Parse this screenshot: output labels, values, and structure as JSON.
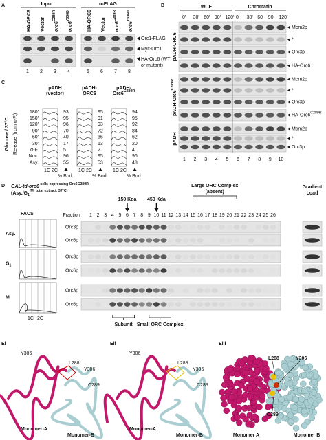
{
  "panel_a": {
    "label": "A",
    "headers": [
      "Input",
      "α-FLAG"
    ],
    "columns": [
      [
        "HA-ORC6"
      ],
      [
        "Vector"
      ],
      [
        "orc6",
        "C289R"
      ],
      [
        "orc6",
        "Y306D"
      ],
      [
        "HA-ORC6"
      ],
      [
        "Vector"
      ],
      [
        "orc6",
        "C289R"
      ],
      [
        "orc6",
        "Y306D"
      ]
    ],
    "rows": [
      [
        "Orc1-FLAG"
      ],
      [
        "Myc-Orc1"
      ],
      [
        "HA-Orc6 (WT",
        "or mutant)"
      ]
    ],
    "lane_numbers": [
      1,
      2,
      3,
      4,
      5,
      6,
      7,
      8
    ]
  },
  "panel_b": {
    "label": "B",
    "headers": [
      "WCE",
      "Chromatin"
    ],
    "times": [
      "0'",
      "30'",
      "60'",
      "90'",
      "120'"
    ],
    "groups": [
      {
        "name": [
          "pADH-ORC6"
        ],
        "bands": [
          [
            "Mcm2p"
          ],
          [
            "*"
          ],
          [
            "Orc3p"
          ],
          [
            "HA-Orc6"
          ]
        ]
      },
      {
        "name": [
          "pADH-Orc6",
          "C289R"
        ],
        "bands": [
          [
            "Mcm2p"
          ],
          [
            "*"
          ],
          [
            "Orc3p"
          ],
          [
            "HA-Orc6",
            "C289R"
          ]
        ]
      },
      {
        "name": [
          "pADH"
        ],
        "bands": [
          [
            "Mcm2p"
          ],
          [
            "*"
          ],
          [
            "Orc3p"
          ]
        ]
      }
    ],
    "lane_numbers": [
      1,
      2,
      3,
      4,
      5,
      6,
      7,
      8,
      9,
      10
    ]
  },
  "panel_c": {
    "label": "C",
    "title": "Glucose / 37°C",
    "subtitle": "Release (from α-F.)",
    "rows": [
      "180'",
      "150'",
      "120'",
      "90'",
      "60'",
      "30'",
      "α-F.",
      "Noc.",
      "Asy."
    ],
    "columns": [
      {
        "header": [
          [
            "pADH"
          ],
          [
            "(vector)"
          ]
        ],
        "values": [
          93,
          95,
          96,
          70,
          40,
          17,
          5,
          96,
          55
        ]
      },
      {
        "header": [
          [
            "pADH-"
          ],
          [
            "ORC6"
          ]
        ],
        "values": [
          95,
          91,
          93,
          72,
          36,
          13,
          2,
          95,
          53
        ]
      },
      {
        "header": [
          [
            "pADH-"
          ],
          [
            "Orc6",
            "C289R"
          ]
        ],
        "values": [
          94,
          95,
          92,
          84,
          62,
          20,
          4,
          96,
          48
        ]
      }
    ],
    "axis": [
      "1C",
      "2C"
    ],
    "footer": "% Bud."
  },
  "panel_d": {
    "label": "D",
    "title": [
      "GAL-td-orc6",
      " cells expressing Orc6",
      "C289R"
    ],
    "subtitle": [
      "(Asy./G",
      "1",
      "/M; total extract; 37°C)"
    ],
    "facs_title": "FACS",
    "states": [
      [
        "Asy."
      ],
      [
        "G",
        "1"
      ],
      [
        "M"
      ]
    ],
    "proteins": [
      "Orc3p",
      "Orc6p"
    ],
    "fraction_label": "Fraction",
    "fractions": [
      1,
      2,
      3,
      4,
      5,
      6,
      7,
      8,
      9,
      10,
      11,
      12,
      13,
      14,
      15,
      16,
      17,
      18,
      19,
      20,
      21,
      22,
      23,
      24,
      25,
      26
    ],
    "markers": [
      "150 Kda",
      "450 Kda"
    ],
    "large_complex": [
      "Large ORC Complex",
      "(absent)"
    ],
    "gradient": [
      "Gradient",
      "Load"
    ],
    "brackets": [
      "Subunit",
      "Small ORC Complex"
    ],
    "facs_axis": [
      "1C",
      "2C"
    ]
  },
  "panel_e": [
    {
      "label": "Ei",
      "residues": [
        "Y306",
        "L288",
        "Y306",
        "C289"
      ],
      "monomers": [
        "Monomer-A",
        "Monomer-B"
      ]
    },
    {
      "label": "Eii",
      "residues": [
        "Y306",
        "L288",
        "Y306",
        "C289"
      ],
      "monomers": [
        "Monomer-A",
        "Monomer-B"
      ]
    },
    {
      "label": "Eiii",
      "residues": [
        "L288",
        "Y306",
        "C289"
      ],
      "monomers": [
        "Monomer A",
        "Monomer B"
      ]
    }
  ]
}
